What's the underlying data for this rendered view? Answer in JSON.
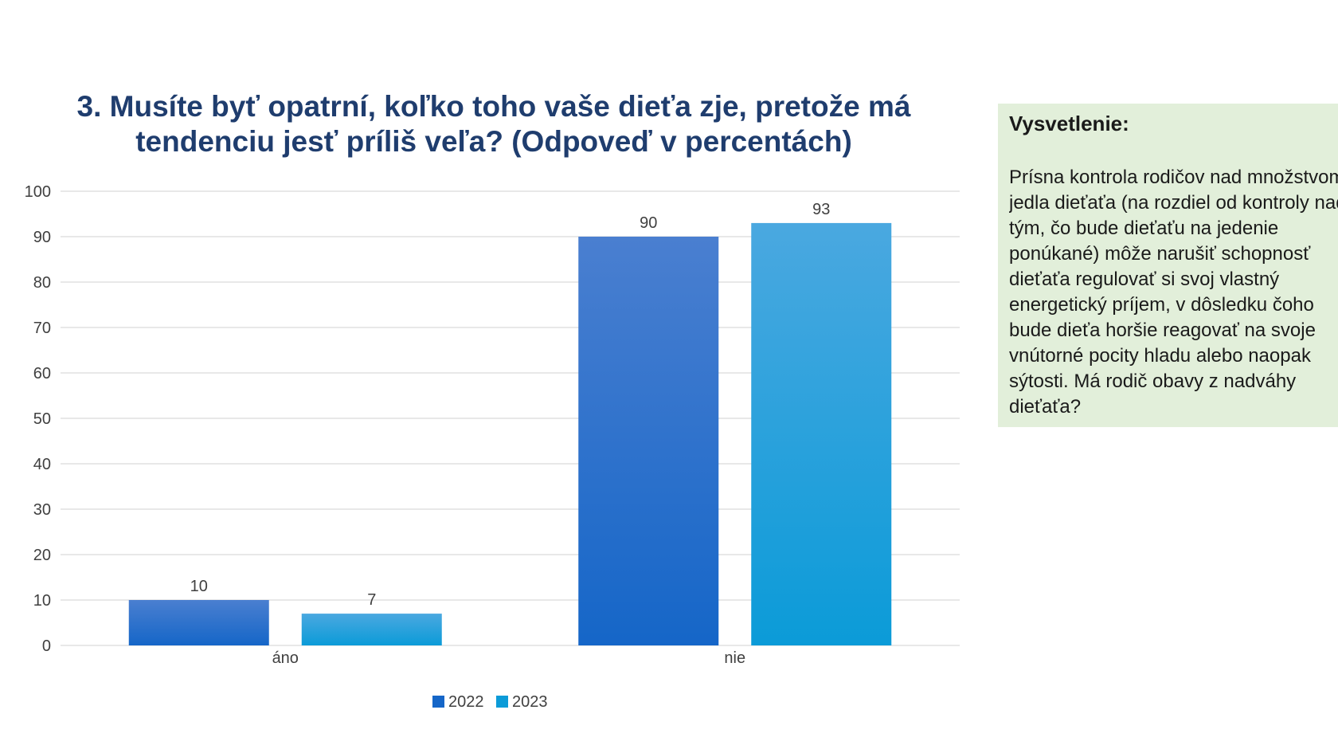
{
  "chart_data": {
    "type": "bar",
    "title": "3. Musíte byť opatrní, koľko toho vaše dieťa zje, pretože má tendenciu jesť príliš veľa? (Odpoveď v percentách)",
    "categories": [
      "áno",
      "nie"
    ],
    "series": [
      {
        "name": "2022",
        "values": [
          10,
          90
        ],
        "color_top": "#4a7fd0",
        "color_bottom": "#1566c8"
      },
      {
        "name": "2023",
        "values": [
          7,
          93
        ],
        "color_top": "#4aa8e0",
        "color_bottom": "#0b9bd8"
      }
    ],
    "ylim": [
      0,
      100
    ],
    "yticks": [
      "0",
      "10",
      "20",
      "30",
      "40",
      "50",
      "60",
      "70",
      "80",
      "90",
      "100"
    ],
    "grid": true,
    "legend_position": "bottom",
    "data_labels": true
  },
  "explanation": {
    "heading": "Vysvetlenie:",
    "text": "Prísna kontrola rodičov nad množstvom\njedla dieťaťa (na rozdiel od kontroly nad\ntým, čo bude dieťaťu na jedenie\nponúkané) môže narušiť schopnosť\ndieťaťa regulovať si svoj vlastný\nenergetický príjem, v dôsledku čoho\nbude dieťa horšie reagovať na svoje\nvnútorné pocity hladu alebo naopak\nsýtosti. Má rodič obavy z nadváhy\ndieťaťa?"
  },
  "colors": {
    "title": "#1f3d6e",
    "grid": "#d9d9d9",
    "axis_text": "#404040",
    "panel_bg": "#e2efda"
  }
}
